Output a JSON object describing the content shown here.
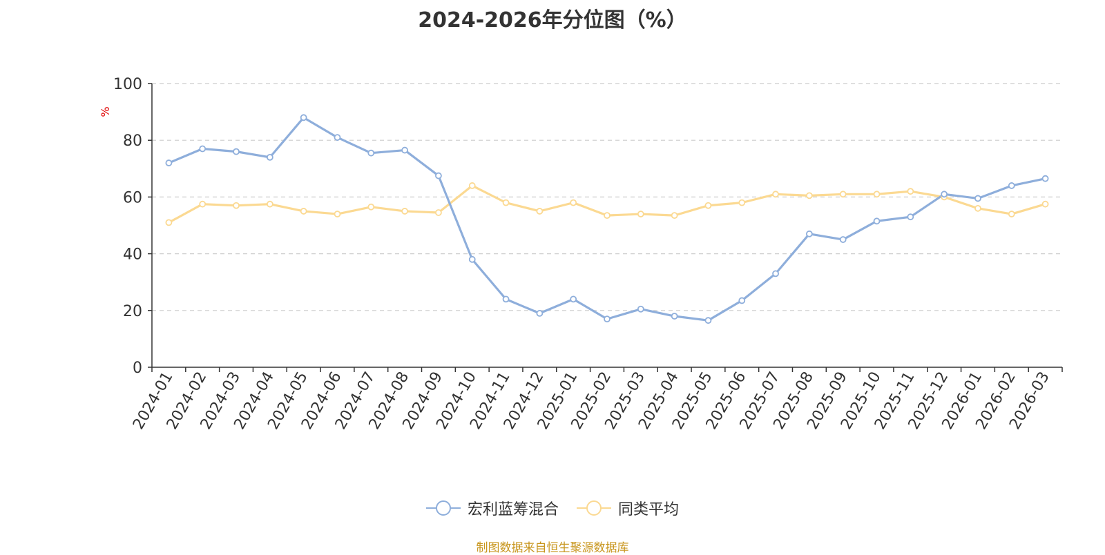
{
  "chart_data": {
    "type": "line",
    "title": "2024-2026年分位图（%）",
    "ylabel": "%",
    "xlabel": "",
    "ylim": [
      0,
      100
    ],
    "yticks": [
      0,
      20,
      40,
      60,
      80,
      100
    ],
    "grid": true,
    "legend_position": "bottom-center",
    "categories": [
      "2024-01",
      "2024-02",
      "2024-03",
      "2024-04",
      "2024-05",
      "2024-06",
      "2024-07",
      "2024-08",
      "2024-09",
      "2024-10",
      "2024-11",
      "2024-12",
      "2025-01",
      "2025-02",
      "2025-03",
      "2025-04",
      "2025-05",
      "2025-06",
      "2025-07",
      "2025-08",
      "2025-09",
      "2025-10",
      "2025-11",
      "2025-12",
      "2026-01",
      "2026-02",
      "2026-03"
    ],
    "series": [
      {
        "name": "宏利蓝筹混合",
        "color": "#8eaedb",
        "values": [
          72,
          77,
          76,
          74,
          88,
          81,
          75.5,
          76.5,
          67.5,
          38,
          24,
          19,
          24,
          17,
          20.5,
          18,
          16.5,
          23.5,
          33,
          47,
          45,
          51.5,
          53,
          61,
          59.5,
          64,
          66.5
        ]
      },
      {
        "name": "同类平均",
        "color": "#fbd992",
        "values": [
          51,
          57.5,
          57,
          57.5,
          55,
          54,
          56.5,
          55,
          54.5,
          64,
          58,
          55,
          58,
          53.5,
          54,
          53.5,
          57,
          58,
          61,
          60.5,
          61,
          61,
          62,
          60,
          56,
          54,
          57.5
        ]
      }
    ]
  },
  "footer": {
    "source": "制图数据来自恒生聚源数据库"
  },
  "colors": {
    "axis": "#333333",
    "grid": "#cccccc",
    "ylabel": "#e00000",
    "source": "#c8961e"
  }
}
